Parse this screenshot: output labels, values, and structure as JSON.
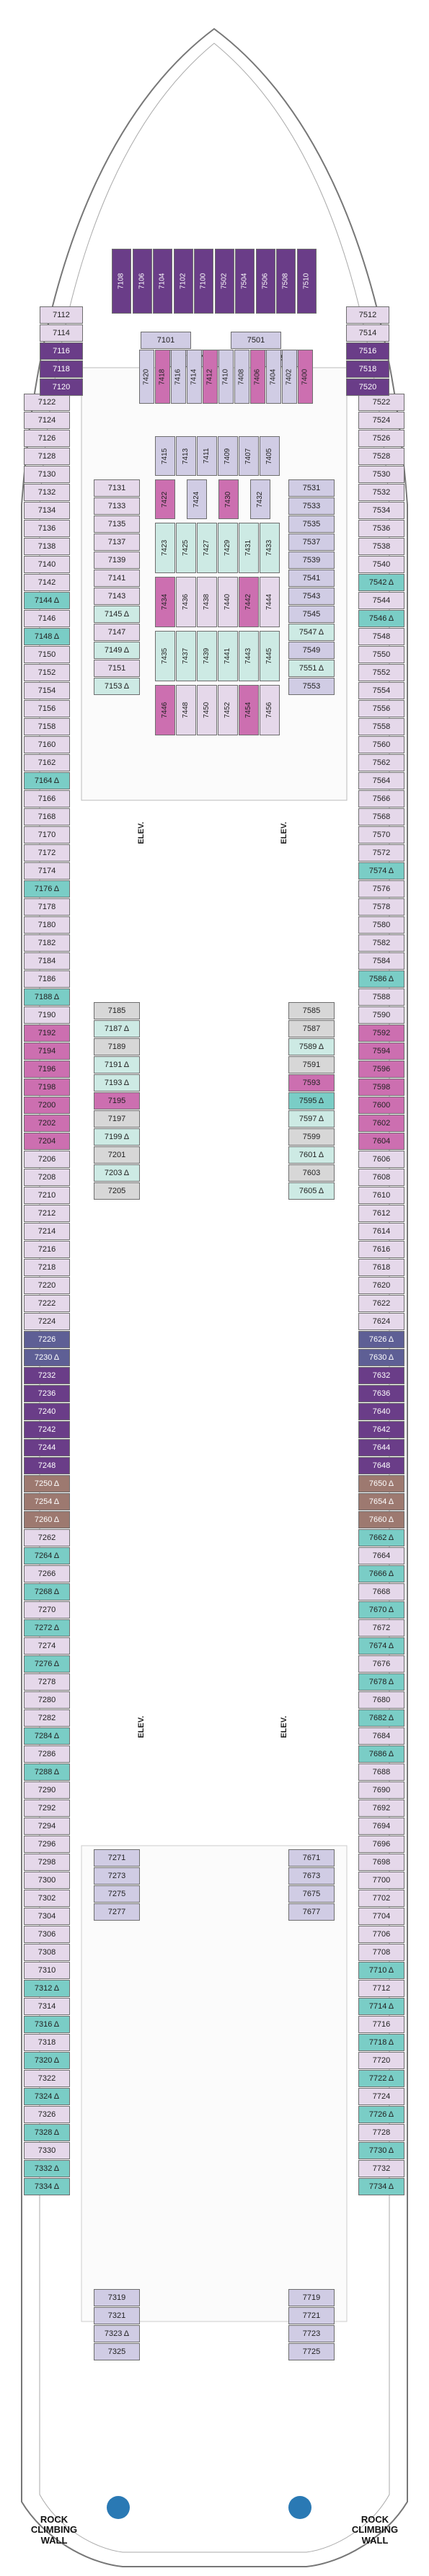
{
  "map_title": "",
  "labels": {
    "elevator": "ELEV.",
    "rock_wall_left": "ROCK\nCLIMBING\nWALL",
    "rock_wall_right": "ROCK\nCLIMBING\nWALL"
  },
  "legend_colors": {
    "interior": "#ffffff",
    "ocean_view": "#d0cce4",
    "balcony": "#e5d8ea",
    "central_park_balcony": "#cdeae4",
    "accessible": "#7acdc6",
    "junior_suite": "#cc6fb0",
    "grand_suite": "#6a3d88",
    "owners_suite": "#9d7970",
    "premium_ocean": "#5e5f95",
    "aft_balcony": "#d7d7d7"
  },
  "cabins": {
    "fwd_top": [
      "7108",
      "7106",
      "7104",
      "7102",
      "7100",
      "7502",
      "7504",
      "7506",
      "7508",
      "7510"
    ],
    "fwd_port": [
      "7112",
      "7114",
      "7116",
      "7118",
      "7120"
    ],
    "fwd_stbd": [
      "7512",
      "7514",
      "7516",
      "7518",
      "7520"
    ],
    "fwd_inner_port_h": [
      "7101",
      "7117"
    ],
    "fwd_inner_stbd_h": [
      "7501",
      "7517"
    ],
    "fwd_inner_v": [
      "7420",
      "7418",
      "7416",
      "7414",
      "7412",
      "7410",
      "7408",
      "7406",
      "7404",
      "7402",
      "7400"
    ],
    "port_outer": [
      "7122",
      "7124",
      "7126",
      "7128",
      "7130",
      "7132",
      "7134",
      "7136",
      "7138",
      "7140",
      "7142",
      "7144",
      "7146",
      "7148",
      "7150",
      "7152",
      "7154",
      "7156",
      "7158",
      "7160",
      "7162",
      "7164",
      "7166",
      "7168",
      "7170",
      "7172",
      "7174",
      "7176",
      "7178",
      "7180",
      "7182",
      "7184",
      "7186",
      "7188",
      "7190",
      "7192",
      "7194",
      "7196",
      "7198",
      "7200",
      "7202",
      "7204",
      "7206",
      "7208",
      "7210",
      "7212",
      "7214",
      "7216",
      "7218",
      "7220",
      "7222",
      "7224",
      "7226",
      "7230",
      "7232",
      "7236",
      "7240",
      "7242",
      "7244",
      "7248",
      "7250",
      "7254",
      "7260",
      "7262",
      "7264",
      "7266",
      "7268",
      "7270",
      "7272",
      "7274",
      "7276",
      "7278",
      "7280",
      "7282",
      "7284",
      "7286",
      "7288",
      "7290",
      "7292",
      "7294",
      "7296",
      "7298",
      "7300",
      "7302",
      "7304",
      "7306",
      "7308",
      "7310",
      "7312",
      "7314",
      "7316",
      "7318",
      "7320",
      "7322",
      "7324",
      "7326",
      "7328",
      "7330",
      "7332",
      "7334"
    ],
    "stbd_outer": [
      "7522",
      "7524",
      "7526",
      "7528",
      "7530",
      "7532",
      "7534",
      "7536",
      "7538",
      "7540",
      "7542",
      "7544",
      "7546",
      "7548",
      "7550",
      "7552",
      "7554",
      "7556",
      "7558",
      "7560",
      "7562",
      "7564",
      "7566",
      "7568",
      "7570",
      "7572",
      "7574",
      "7576",
      "7578",
      "7580",
      "7582",
      "7584",
      "7586",
      "7588",
      "7590",
      "7592",
      "7594",
      "7596",
      "7598",
      "7600",
      "7602",
      "7604",
      "7606",
      "7608",
      "7610",
      "7612",
      "7614",
      "7616",
      "7618",
      "7620",
      "7622",
      "7624",
      "7626",
      "7630",
      "7632",
      "7636",
      "7640",
      "7642",
      "7644",
      "7648",
      "7650",
      "7654",
      "7660",
      "7662",
      "7664",
      "7666",
      "7668",
      "7670",
      "7672",
      "7674",
      "7676",
      "7678",
      "7680",
      "7682",
      "7684",
      "7686",
      "7688",
      "7690",
      "7692",
      "7694",
      "7696",
      "7698",
      "7700",
      "7702",
      "7704",
      "7706",
      "7708",
      "7710",
      "7712",
      "7714",
      "7716",
      "7718",
      "7720",
      "7722",
      "7724",
      "7726",
      "7728",
      "7730",
      "7732",
      "7734"
    ],
    "park_port": [
      "7131",
      "7133",
      "7135",
      "7137",
      "7139",
      "7141",
      "7143",
      "7145",
      "7147",
      "7149",
      "7151",
      "7153"
    ],
    "park_stbd": [
      "7531",
      "7533",
      "7535",
      "7537",
      "7539",
      "7541",
      "7543",
      "7545",
      "7547",
      "7549",
      "7551",
      "7553"
    ],
    "park_inner_v_top": [
      "7415",
      "7413",
      "7411",
      "7409",
      "7407",
      "7405"
    ],
    "park_inner_v_mid": [
      "7422",
      "7424",
      "7430",
      "7432"
    ],
    "park_inner_v_low1": [
      "7423",
      "7425",
      "7427",
      "7429",
      "7431",
      "7433"
    ],
    "park_inner_v_low2": [
      "7434",
      "7436",
      "7438",
      "7440",
      "7442",
      "7444"
    ],
    "park_inner_v_low3": [
      "7435",
      "7437",
      "7439",
      "7441",
      "7443",
      "7445"
    ],
    "park_inner_v_low4": [
      "7446",
      "7448",
      "7450",
      "7452",
      "7454",
      "7456"
    ],
    "promenade_port": [
      "7185",
      "7187",
      "7189",
      "7191",
      "7193",
      "7195",
      "7197",
      "7199",
      "7201",
      "7203",
      "7205"
    ],
    "promenade_stbd": [
      "7585",
      "7587",
      "7589",
      "7591",
      "7593",
      "7595",
      "7597",
      "7599",
      "7601",
      "7603",
      "7605"
    ],
    "aft_inner_port": [
      "7271",
      "7273",
      "7275",
      "7277"
    ],
    "aft_inner_stbd": [
      "7671",
      "7673",
      "7675",
      "7677"
    ],
    "aft_low_port": [
      "7319",
      "7321",
      "7323",
      "7325"
    ],
    "aft_low_stbd": [
      "7719",
      "7721",
      "7723",
      "7725"
    ]
  },
  "accessible_marks": {
    "port_outer": [
      "7144",
      "7148",
      "7164",
      "7176",
      "7188",
      "7230",
      "7250",
      "7254",
      "7260",
      "7264",
      "7268",
      "7272",
      "7276",
      "7284",
      "7288",
      "7312",
      "7316",
      "7320",
      "7324",
      "7328",
      "7332",
      "7334"
    ],
    "stbd_outer": [
      "7542",
      "7546",
      "7574",
      "7586",
      "7626",
      "7630",
      "7650",
      "7654",
      "7660",
      "7662",
      "7666",
      "7670",
      "7674",
      "7678",
      "7682",
      "7686",
      "7710",
      "7714",
      "7718",
      "7722",
      "7726",
      "7730",
      "7734"
    ],
    "park_port": [
      "7145",
      "7149",
      "7153"
    ],
    "park_stbd": [
      "7547",
      "7551"
    ],
    "promenade_port": [
      "7187",
      "7191",
      "7193",
      "7199",
      "7203"
    ],
    "promenade_stbd": [
      "7589",
      "7595",
      "7597",
      "7601",
      "7605"
    ],
    "aft_low_port": [
      "7323"
    ]
  }
}
